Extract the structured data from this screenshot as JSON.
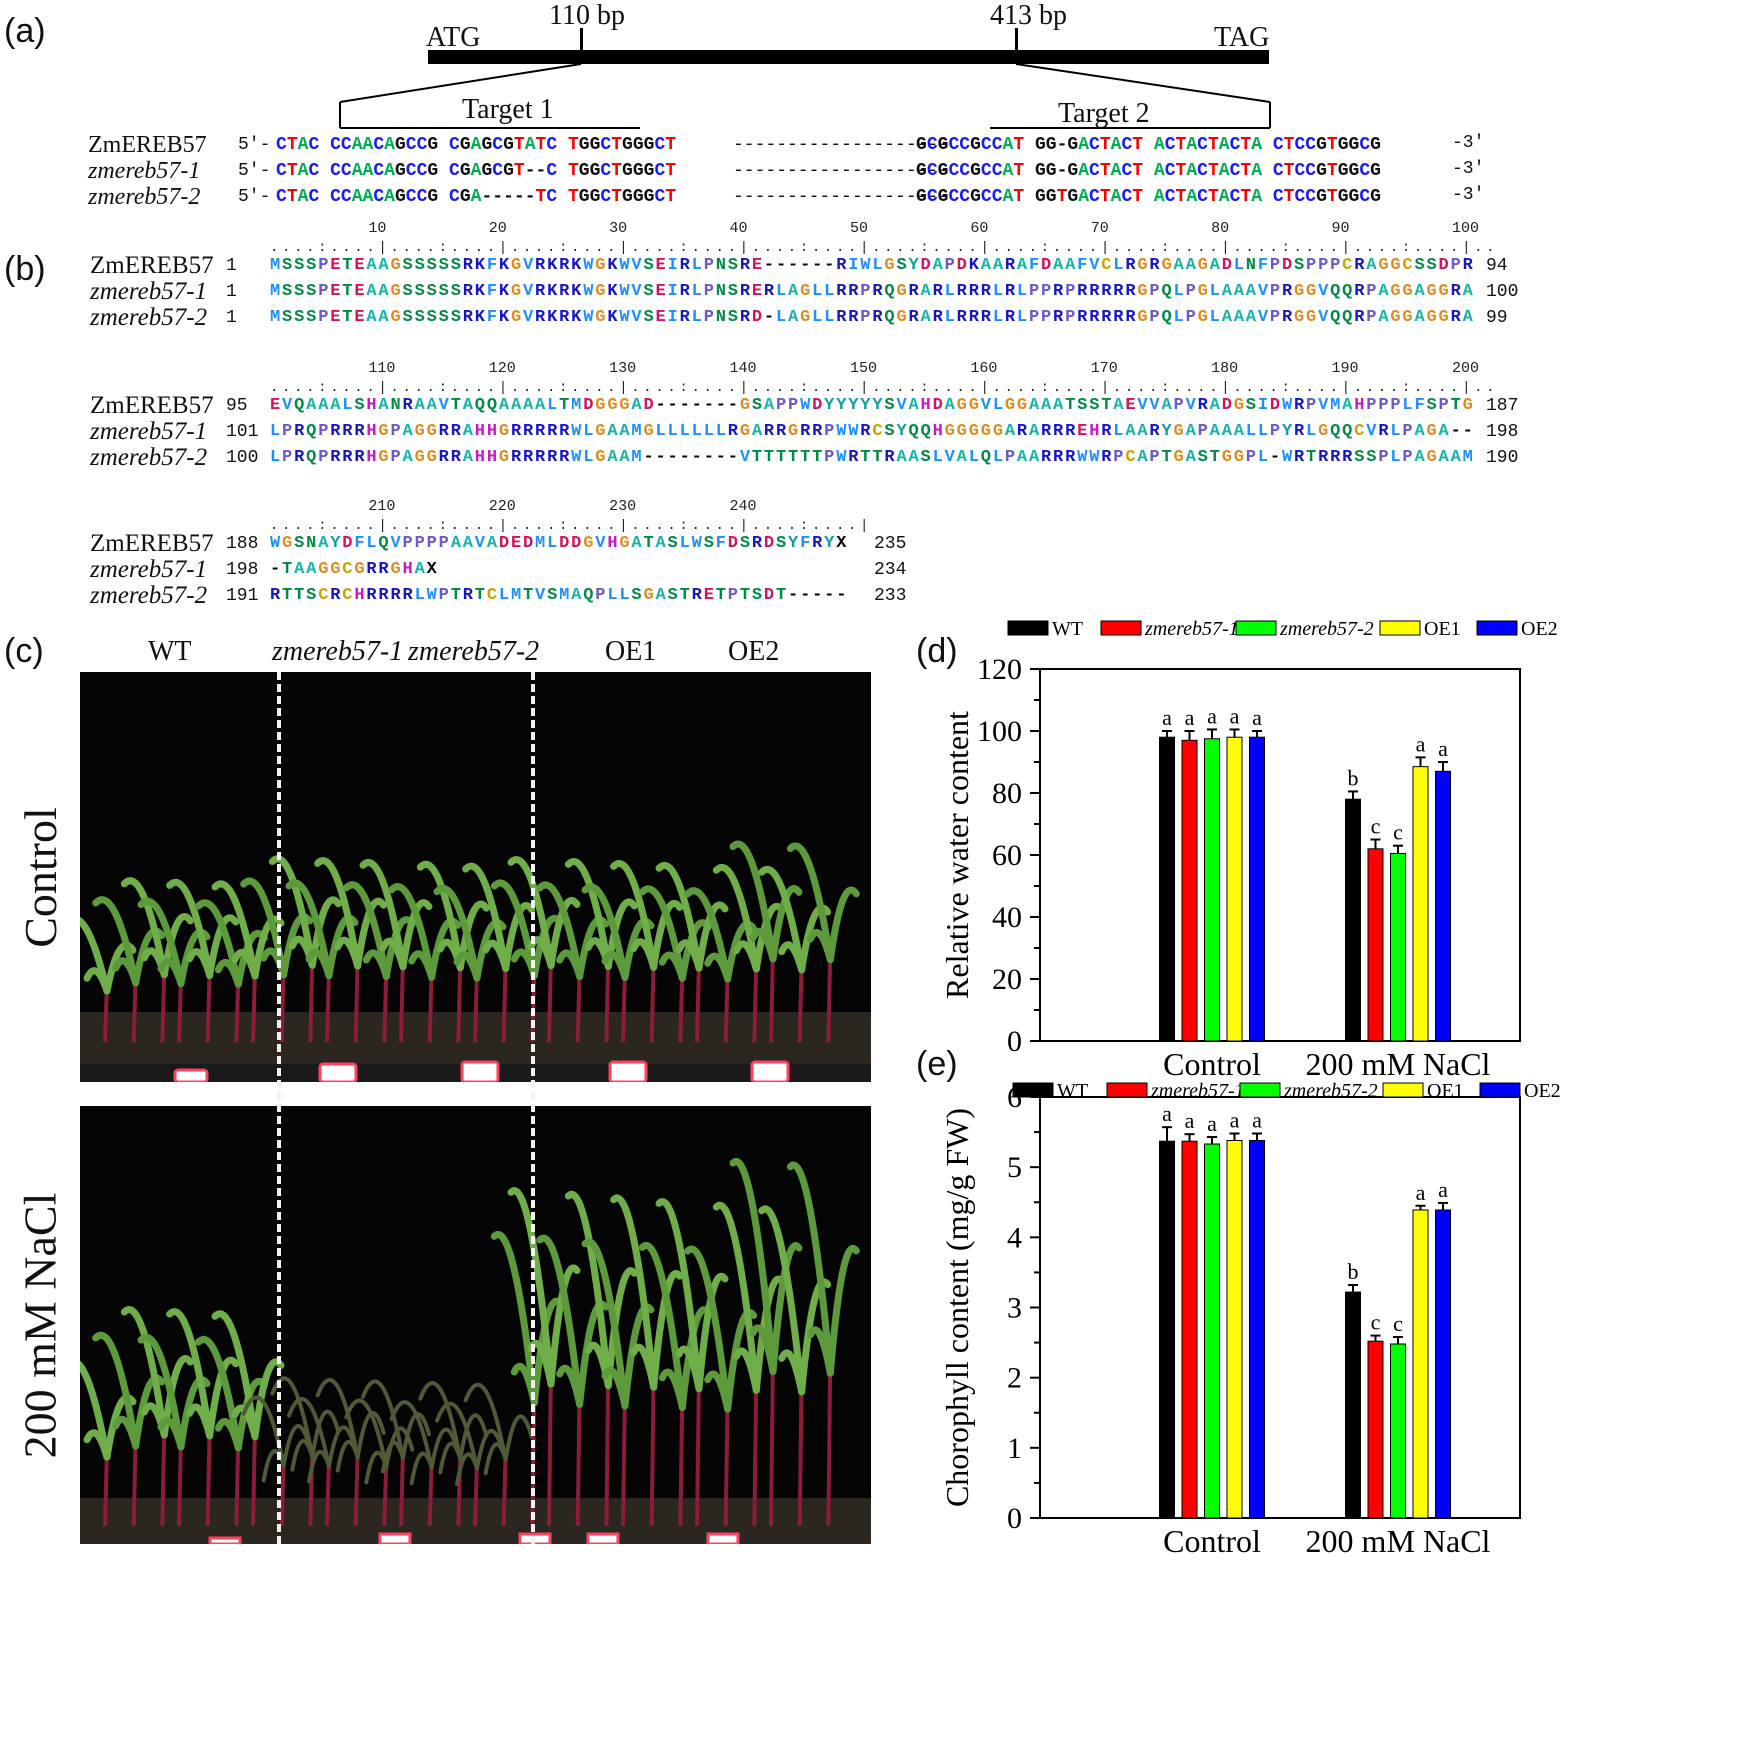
{
  "panels": {
    "a": "(a)",
    "b": "(b)",
    "c": "(c)",
    "d": "(d)",
    "e": "(e)"
  },
  "gene_map": {
    "start": "ATG",
    "stop": "TAG",
    "site1": "110 bp",
    "site2": "413 bp",
    "target1": "Target 1",
    "target2": "Target 2"
  },
  "dna_alignment": [
    {
      "name": "ZmEREB57",
      "italic": false,
      "prefix": "5'-",
      "left": "CTAC CCAACAGCCG CGAGCGTATC TGGCTGGGCT",
      "gap": "--------------------",
      "right": "GCGCCGCCAT GG-GACTACT ACTACTACTA CTCCGTGGCG",
      "suffix": "-3'"
    },
    {
      "name": "zmereb57-1",
      "italic": true,
      "prefix": "5'-",
      "left": "CTAC CCAACAGCCG CGAGCGT--C TGGCTGGGCT",
      "gap": "--------------------",
      "right": "GCGCCGCCAT GG-GACTACT ACTACTACTA CTCCGTGGCG",
      "suffix": "-3'"
    },
    {
      "name": "zmereb57-2",
      "italic": true,
      "prefix": "5'-",
      "left": "CTAC CCAACAGCCG CGA-----TC TGGCTGGGCT",
      "gap": "--------------------",
      "right": "GCGCCGCCAT GGTGACTACT ACTACTACTA CTCCGTGGCG",
      "suffix": "-3'"
    }
  ],
  "protein_alignment": [
    {
      "ruler": [
        "10",
        "20",
        "30",
        "40",
        "50",
        "60",
        "70",
        "80",
        "90",
        "100"
      ],
      "rows": [
        {
          "name": "ZmEREB57",
          "italic": false,
          "start": "1",
          "seq": "MSSSPETEAAGSSSSSRKFKGVRKRKWGKWVSEIRLPNSRE------RIWLGSYDAPDKAARAFDAAFVCLRGRGAAGADLNFPDSPPPCRAGGCSSDPR",
          "end": "94"
        },
        {
          "name": "zmereb57-1",
          "italic": true,
          "start": "1",
          "seq": "MSSSPETEAAGSSSSSRKFKGVRKRKWGKWVSEIRLPNSRERLAGLLRRPRQGRARLRRRLRLPPRPRRRRRGPQLPGLAAAVPRGGVQQRPAGGAGGRA",
          "end": "100"
        },
        {
          "name": "zmereb57-2",
          "italic": true,
          "start": "1",
          "seq": "MSSSPETEAAGSSSSSRKFKGVRKRKWGKWVSEIRLPNSRD-LAGLLRRPRQGRARLRRRLRLPPRPRRRRRGPQLPGLAAAVPRGGVQQRPAGGAGGRA",
          "end": "99"
        }
      ]
    },
    {
      "ruler": [
        "110",
        "120",
        "130",
        "140",
        "150",
        "160",
        "170",
        "180",
        "190",
        "200"
      ],
      "rows": [
        {
          "name": "ZmEREB57",
          "italic": false,
          "start": "95",
          "seq": "EVQAAALSHANRAAVTAQQAAAALTMDGGGAD-------GSAPPWDYYYYYSVAHDAGGVLGGAAATSSTAEVVAPVRADGSIDWRPVMAHPPPLFSPTG",
          "end": "187"
        },
        {
          "name": "zmereb57-1",
          "italic": true,
          "start": "101",
          "seq": "LPRQPRRRHGPAGGRRAHHGRRRRRWLGAAMGLLLLLLRGARRGRRPWWRCSYQQHGGGGGARARRREHRLAARYGAPAAALLPYRLGQQCVRLPAGA--",
          "end": "198"
        },
        {
          "name": "zmereb57-2",
          "italic": true,
          "start": "100",
          "seq": "LPRQPRRRHGPAGGRRAHHGRRRRRWLGAAM--------VTTTTTTPWRTTRAASLVALQLPAARRRWWRPCAPTGASTGGPL-WRTRRRSSPLPAGAAM",
          "end": "190"
        }
      ]
    },
    {
      "ruler": [
        "210",
        "220",
        "230",
        "240"
      ],
      "rows": [
        {
          "name": "ZmEREB57",
          "italic": false,
          "start": "188",
          "seq": "WGSNAYDFLQVPPPPAAVADEDMLDDGVHGATASLWSFDSRDSYFRYX",
          "end": "235"
        },
        {
          "name": "zmereb57-1",
          "italic": true,
          "start": "198",
          "seq": "-TAAGGCGRRGHAX",
          "end": "234"
        },
        {
          "name": "zmereb57-2",
          "italic": true,
          "start": "191",
          "seq": "RTTSCRCHRRRRLWPTRTCLMTVSMAQPLLSGASTRETPTSDT-----",
          "end": "233"
        }
      ]
    }
  ],
  "photo": {
    "genotypes": [
      "WT",
      "zmereb57-1",
      "zmereb57-2",
      "OE1",
      "OE2"
    ],
    "conditions": [
      "Control",
      "200 mM NaCl"
    ]
  },
  "colors": {
    "series": [
      "#000000",
      "#ff0000",
      "#00ff00",
      "#ffff00",
      "#0000ff"
    ],
    "aa": {
      "A": "#19b4a8",
      "G": "#e08b1c",
      "P": "#6a5acd",
      "S": "#008b45",
      "T": "#008b45",
      "N": "#008b45",
      "Q": "#008b45",
      "C": "#c9a400",
      "D": "#d4145a",
      "E": "#d4145a",
      "R": "#1616c8",
      "K": "#1616c8",
      "H": "#c818c8",
      "M": "#1e90ff",
      "L": "#1e90ff",
      "I": "#1e90ff",
      "V": "#1e90ff",
      "F": "#1e90ff",
      "W": "#1e90ff",
      "Y": "#10a0a0",
      "X": "#000000",
      "-": "#000000"
    },
    "nt": {
      "A": "#00b050",
      "C": "#1a1aff",
      "G": "#111111",
      "T": "#ff0000",
      "-": "#111111"
    }
  },
  "chart_data": [
    {
      "type": "bar",
      "ylabel": "Relative water content",
      "categories": [
        "Control",
        "200 mM NaCl"
      ],
      "ylim": [
        0,
        120
      ],
      "yticks": [
        0,
        20,
        40,
        60,
        80,
        100,
        120
      ],
      "legend_position": "top",
      "series": [
        {
          "name": "WT",
          "italic": false,
          "values": [
            98,
            78
          ],
          "errors": [
            2,
            2.5
          ],
          "letters": [
            "a",
            "b"
          ]
        },
        {
          "name": "zmereb57-1",
          "italic": true,
          "values": [
            97,
            62
          ],
          "errors": [
            3,
            3
          ],
          "letters": [
            "a",
            "c"
          ]
        },
        {
          "name": "zmereb57-2",
          "italic": true,
          "values": [
            97.5,
            60.5
          ],
          "errors": [
            3,
            2.5
          ],
          "letters": [
            "a",
            "c"
          ]
        },
        {
          "name": "OE1",
          "italic": false,
          "values": [
            98,
            88.5
          ],
          "errors": [
            2.5,
            3
          ],
          "letters": [
            "a",
            "a"
          ]
        },
        {
          "name": "OE2",
          "italic": false,
          "values": [
            98,
            87
          ],
          "errors": [
            2,
            3
          ],
          "letters": [
            "a",
            "a"
          ]
        }
      ]
    },
    {
      "type": "bar",
      "ylabel": "Chorophyll content (mg/g FW)",
      "categories": [
        "Control",
        "200 mM NaCl"
      ],
      "ylim": [
        0,
        6
      ],
      "yticks": [
        0,
        1,
        2,
        3,
        4,
        5,
        6
      ],
      "legend_position": "top",
      "series": [
        {
          "name": "WT",
          "italic": false,
          "values": [
            5.37,
            3.22
          ],
          "errors": [
            0.2,
            0.1
          ],
          "letters": [
            "a",
            "b"
          ]
        },
        {
          "name": "zmereb57-1",
          "italic": true,
          "values": [
            5.37,
            2.52
          ],
          "errors": [
            0.1,
            0.08
          ],
          "letters": [
            "a",
            "c"
          ]
        },
        {
          "name": "zmereb57-2",
          "italic": true,
          "values": [
            5.33,
            2.48
          ],
          "errors": [
            0.1,
            0.1
          ],
          "letters": [
            "a",
            "c"
          ]
        },
        {
          "name": "OE1",
          "italic": false,
          "values": [
            5.38,
            4.39
          ],
          "errors": [
            0.1,
            0.06
          ],
          "letters": [
            "a",
            "a"
          ]
        },
        {
          "name": "OE2",
          "italic": false,
          "values": [
            5.38,
            4.39
          ],
          "errors": [
            0.1,
            0.1
          ],
          "letters": [
            "a",
            "a"
          ]
        }
      ]
    }
  ]
}
